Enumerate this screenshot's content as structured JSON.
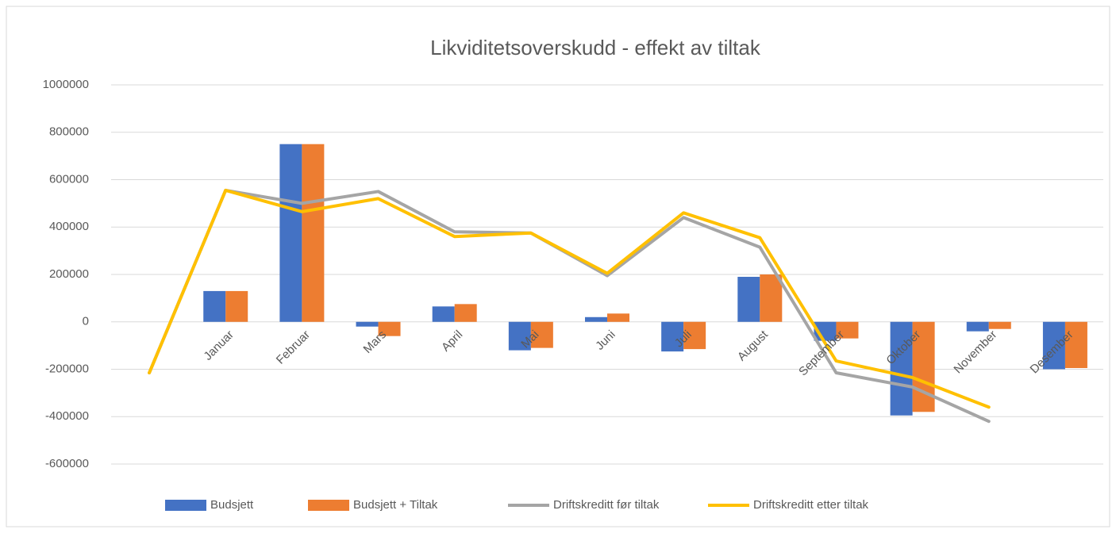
{
  "chart_data": {
    "type": "bar-line",
    "title": "Likviditetsoverskudd - effekt av tiltak",
    "categories": [
      null,
      "Januar",
      "Februar",
      "Mars",
      "April",
      "Mai",
      "Juni",
      "Juli",
      "August",
      "September",
      "Oktober",
      "November",
      "Desember"
    ],
    "series": [
      {
        "name": "Budsjett",
        "type": "bar",
        "color": "#4472c4",
        "values": [
          null,
          130000,
          750000,
          -20000,
          65000,
          -120000,
          20000,
          -125000,
          190000,
          -80000,
          -395000,
          -40000,
          -200000
        ]
      },
      {
        "name": "Budsjett + Tiltak",
        "type": "bar",
        "color": "#ed7d31",
        "values": [
          null,
          130000,
          750000,
          -60000,
          75000,
          -110000,
          35000,
          -115000,
          200000,
          -70000,
          -380000,
          -30000,
          -195000
        ]
      },
      {
        "name": "Driftskreditt før tiltak",
        "type": "line",
        "color": "#a5a5a5",
        "values": [
          -215000,
          555000,
          500000,
          550000,
          380000,
          375000,
          195000,
          440000,
          315000,
          -215000,
          -275000,
          -420000,
          null
        ]
      },
      {
        "name": "Driftskreditt etter tiltak",
        "type": "line",
        "color": "#ffc000",
        "values": [
          -215000,
          555000,
          465000,
          520000,
          360000,
          375000,
          205000,
          460000,
          355000,
          -165000,
          -235000,
          -360000,
          null
        ]
      }
    ],
    "ylim": [
      -600000,
      1000000
    ],
    "yticks": [
      -600000,
      -400000,
      -200000,
      0,
      200000,
      400000,
      600000,
      800000,
      1000000
    ],
    "grid": true,
    "legend": "bottom"
  }
}
